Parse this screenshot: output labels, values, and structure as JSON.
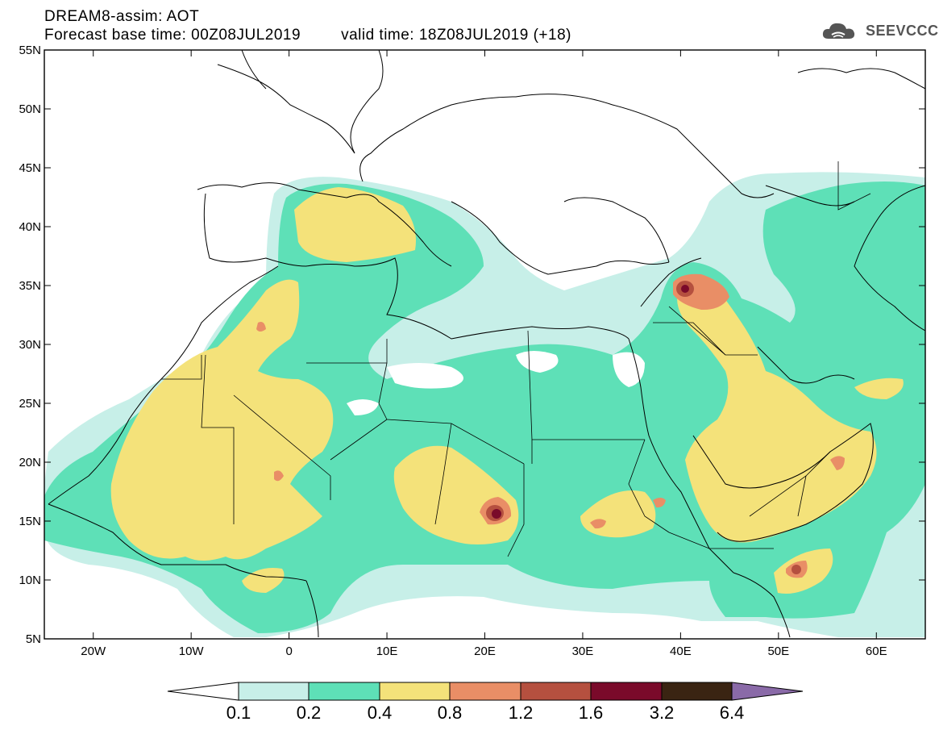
{
  "header": {
    "title": "DREAM8-assim: AOT",
    "base_time": "Forecast base time: 00Z08JUL2019",
    "valid_time": "valid time: 18Z08JUL2019 (+18)",
    "logo_text": "SEEVCCC",
    "logo_icon": "cloud-icon"
  },
  "map": {
    "lon_range": [
      -25,
      65
    ],
    "lat_range": [
      5,
      55
    ],
    "lat_ticks": [
      "55N",
      "50N",
      "45N",
      "40N",
      "35N",
      "30N",
      "25N",
      "20N",
      "15N",
      "10N",
      "5N"
    ],
    "lon_ticks": [
      "20W",
      "10W",
      "0",
      "10E",
      "20E",
      "30E",
      "40E",
      "50E",
      "60E"
    ],
    "lat_values": [
      55,
      50,
      45,
      40,
      35,
      30,
      25,
      20,
      15,
      10,
      5
    ],
    "lon_values": [
      -20,
      -10,
      0,
      10,
      20,
      30,
      40,
      50,
      60
    ]
  },
  "colorbar": {
    "labels": [
      "0.1",
      "0.2",
      "0.4",
      "0.8",
      "1.2",
      "1.6",
      "3.2",
      "6.4"
    ],
    "colors": {
      "below": "#ffffff",
      "c1": "#c7efe8",
      "c2": "#5ee0b7",
      "c3": "#f4e27a",
      "c4": "#e98e66",
      "c5": "#b5503f",
      "c6": "#7a0a2a",
      "c7": "#3a2412",
      "above": "#8a6aa8"
    }
  }
}
